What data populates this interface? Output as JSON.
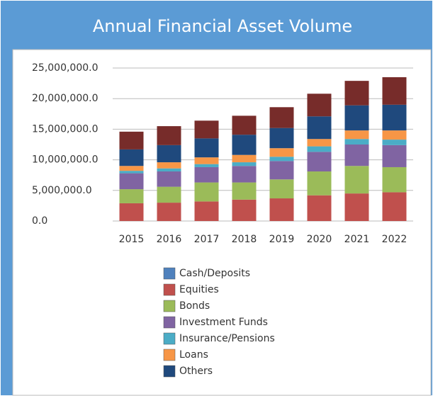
{
  "chart_data": {
    "type": "stacked-bar",
    "title": "Annual Financial Asset Volume",
    "categories": [
      "2015",
      "2016",
      "2017",
      "2018",
      "2019",
      "2020",
      "2021",
      "2022"
    ],
    "series": [
      {
        "name": "Cash/Deposits",
        "color": "#4f81bd",
        "values": [
          0,
          0,
          0,
          0,
          0,
          0,
          0,
          0
        ]
      },
      {
        "name": "Equities",
        "color": "#c0504d",
        "values": [
          2900000,
          3000000,
          3200000,
          3500000,
          3700000,
          4200000,
          4500000,
          4700000
        ]
      },
      {
        "name": "Bonds",
        "color": "#9bbb59",
        "values": [
          2300000,
          2600000,
          3100000,
          2800000,
          3100000,
          3900000,
          4500000,
          4100000
        ]
      },
      {
        "name": "Investment Funds",
        "color": "#8064a2",
        "values": [
          2600000,
          2500000,
          2500000,
          2700000,
          3000000,
          3200000,
          3500000,
          3600000
        ]
      },
      {
        "name": "Insurance/Pensions",
        "color": "#4bacc6",
        "values": [
          400000,
          500000,
          500000,
          600000,
          700000,
          900000,
          900000,
          900000
        ]
      },
      {
        "name": "Loans",
        "color": "#f79646",
        "values": [
          800000,
          1000000,
          1100000,
          1200000,
          1400000,
          1200000,
          1400000,
          1500000
        ]
      },
      {
        "name": "Others",
        "color": "#1f497d",
        "values": [
          2700000,
          2800000,
          3100000,
          3300000,
          3300000,
          3700000,
          4100000,
          4200000
        ]
      },
      {
        "color": "#772c2a",
        "values": [
          2900000,
          3100000,
          2900000,
          3100000,
          3400000,
          3700000,
          4000000,
          4500000
        ]
      }
    ],
    "ylim": [
      0,
      25000000
    ],
    "yticks": [
      {
        "value": 0,
        "label": "0.0"
      },
      {
        "value": 5000000,
        "label": "5,000,000.0"
      },
      {
        "value": 10000000,
        "label": "10,000,000.0"
      },
      {
        "value": 15000000,
        "label": "15,000,000.0"
      },
      {
        "value": 20000000,
        "label": "20,000,000.0"
      },
      {
        "value": 25000000,
        "label": "25,000,000.0"
      }
    ],
    "grid": true
  }
}
